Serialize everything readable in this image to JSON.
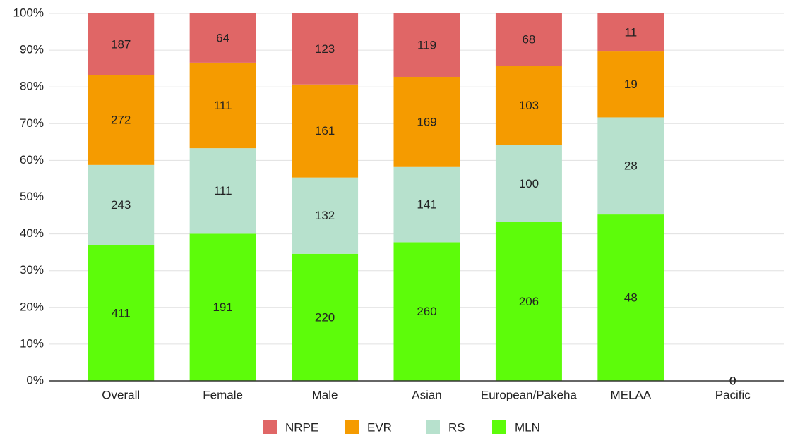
{
  "chart_data": {
    "type": "bar",
    "stack": "percent",
    "categories": [
      "Overall",
      "Female",
      "Male",
      "Asian",
      "European/Pākehā",
      "MELAA",
      "Pacific"
    ],
    "series": [
      {
        "name": "NRPE",
        "color": "#e06666",
        "values": [
          187,
          64,
          123,
          119,
          68,
          11,
          0
        ]
      },
      {
        "name": "EVR",
        "color": "#f59b00",
        "values": [
          272,
          111,
          161,
          169,
          103,
          19,
          0
        ]
      },
      {
        "name": "RS",
        "color": "#b7e1cd",
        "values": [
          243,
          111,
          132,
          141,
          100,
          28,
          0
        ]
      },
      {
        "name": "MLN",
        "color": "#5dfc0a",
        "values": [
          411,
          191,
          220,
          260,
          206,
          48,
          0
        ]
      }
    ],
    "ylim": [
      0,
      100
    ],
    "yticks": [
      {
        "value": 0,
        "label": "0%"
      },
      {
        "value": 10,
        "label": "10%"
      },
      {
        "value": 20,
        "label": "20%"
      },
      {
        "value": 30,
        "label": "30%"
      },
      {
        "value": 40,
        "label": "40%"
      },
      {
        "value": 50,
        "label": "50%"
      },
      {
        "value": 60,
        "label": "60%"
      },
      {
        "value": 70,
        "label": "70%"
      },
      {
        "value": 80,
        "label": "80%"
      },
      {
        "value": 90,
        "label": "90%"
      },
      {
        "value": 100,
        "label": "100%"
      }
    ],
    "grid": true,
    "legend": "bottom"
  }
}
